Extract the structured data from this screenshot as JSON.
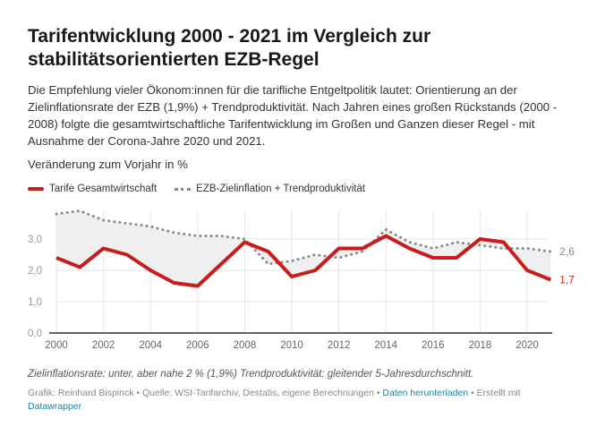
{
  "header": {
    "title": "Tarifentwicklung 2000 - 2021 im Vergleich zur stabilitätsorientierten EZB-Regel",
    "description": "Die Empfehlung vieler Ökonom:innen für die tarifliche Entgeltpolitik lautet: Orientierung an der Zielinflationsrate der EZB (1,9%) + Trendproduktivität. Nach Jahren eines großen Rückstands (2000 - 2008) folgte die gesamtwirtschaftliche Tarifentwicklung im Großen und Ganzen dieser Regel - mit Ausnahme der Corona-Jahre 2020 und 2021."
  },
  "chart_data": {
    "type": "line",
    "ylabel": "Veränderung zum Vorjahr in %",
    "ylim": [
      0,
      4
    ],
    "yticks": [
      "0,0",
      "1,0",
      "2,0",
      "3,0"
    ],
    "xticks": [
      "2000",
      "2002",
      "2004",
      "2006",
      "2008",
      "2010",
      "2012",
      "2014",
      "2016",
      "2018",
      "2020"
    ],
    "x": [
      2000,
      2001,
      2002,
      2003,
      2004,
      2005,
      2006,
      2007,
      2008,
      2009,
      2010,
      2011,
      2012,
      2013,
      2014,
      2015,
      2016,
      2017,
      2018,
      2019,
      2020,
      2021
    ],
    "series": [
      {
        "name": "Tarife Gesamtwirtschaft",
        "color": "#c71e1d",
        "end_label": "1,7",
        "values": [
          2.4,
          2.1,
          2.7,
          2.5,
          2.0,
          1.6,
          1.5,
          2.2,
          2.9,
          2.6,
          1.8,
          2.0,
          2.7,
          2.7,
          3.1,
          2.7,
          2.4,
          2.4,
          3.0,
          2.9,
          2.0,
          1.7
        ]
      },
      {
        "name": "EZB-Zielinflation + Trendproduktivität",
        "color": "#888888",
        "end_label": "2,6",
        "values": [
          3.8,
          3.9,
          3.6,
          3.5,
          3.4,
          3.2,
          3.1,
          3.1,
          3.0,
          2.2,
          2.3,
          2.5,
          2.4,
          2.6,
          3.3,
          2.9,
          2.7,
          2.9,
          2.8,
          2.7,
          2.7,
          2.6
        ]
      }
    ]
  },
  "footer": {
    "notes": "Zielinflationsrate: unter, aber nahe 2 % (1,9%) Trendproduktivität: gleitender 5-Jahresdurchschnitt.",
    "source": "Grafik: Reinhard Bispinck • Quelle: WSI-Tarifarchiv, Destatis, eigene Berechnungen • ",
    "download": "Daten herunterladen",
    "created": " • Erstellt mit ",
    "datawrapper": "Datawrapper"
  }
}
